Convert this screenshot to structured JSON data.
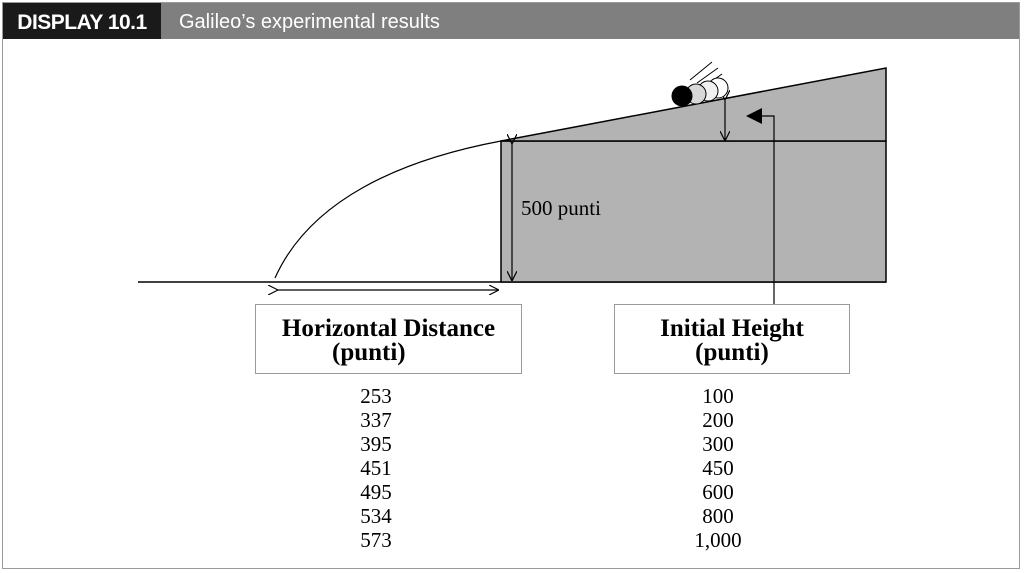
{
  "header": {
    "display_label": "DISPLAY 10.1",
    "title": "Galileo’s experimental results"
  },
  "diagram": {
    "table_height_label": "500 punti"
  },
  "columns": {
    "horizontal_distance": {
      "title_line1": "Horizontal Distance",
      "title_line2": "(punti)",
      "values": [
        "253",
        "337",
        "395",
        "451",
        "495",
        "534",
        "573"
      ]
    },
    "initial_height": {
      "title_line1": "Initial Height",
      "title_line2": "(punti)",
      "values": [
        "100",
        "200",
        "300",
        "450",
        "600",
        "800",
        "1,000"
      ]
    }
  },
  "colors": {
    "header_bar": "#7f7f7f",
    "display_label_bg": "#1a1a1a",
    "ramp_fill": "#b3b3b3"
  }
}
